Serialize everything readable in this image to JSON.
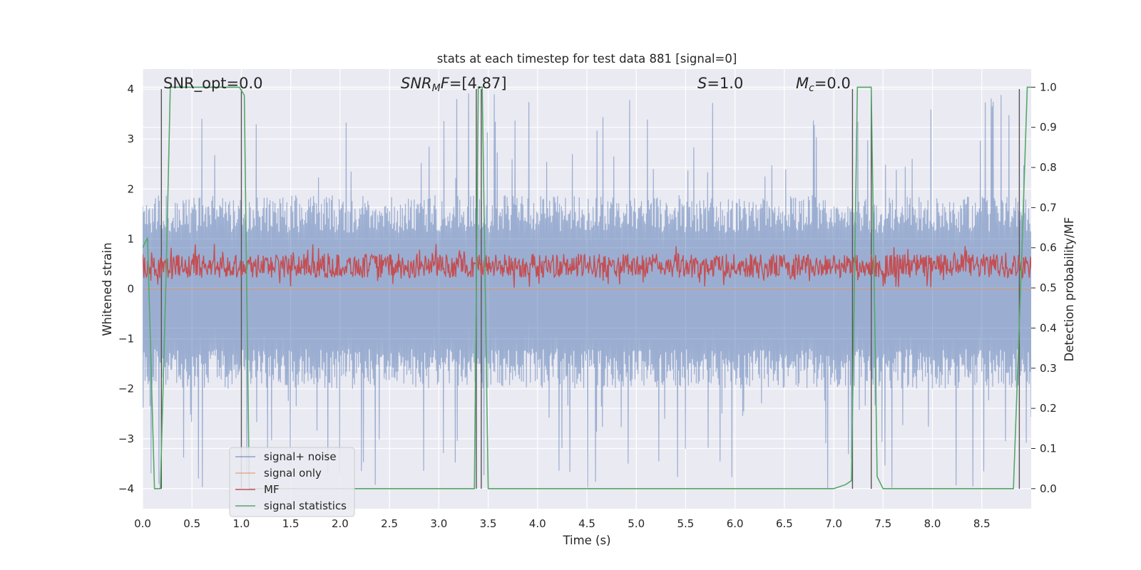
{
  "chart_data": {
    "type": "line",
    "title": "stats at each timestep for test data 881 [signal=0]",
    "xlabel": "Time (s)",
    "ylabel_left": "Whitened strain",
    "ylabel_right": "Detection probability/MF",
    "xlim": [
      0,
      9.0
    ],
    "ylim_left": [
      -4.4,
      4.4
    ],
    "ylim_right": [
      -0.05,
      1.045
    ],
    "xticks": [
      "0.0",
      "0.5",
      "1.0",
      "1.5",
      "2.0",
      "2.5",
      "3.0",
      "3.5",
      "4.0",
      "4.5",
      "5.0",
      "5.5",
      "6.0",
      "6.5",
      "7.0",
      "7.5",
      "8.0",
      "8.5"
    ],
    "yticks_left": [
      "4",
      "3",
      "2",
      "1",
      "0",
      "−1",
      "−2",
      "−3",
      "−4"
    ],
    "yticks_right": [
      "1.0",
      "0.9",
      "0.8",
      "0.7",
      "0.6",
      "0.5",
      "0.4",
      "0.3",
      "0.2",
      "0.1",
      "0.0"
    ],
    "grid": true,
    "background": "#eaeaf2",
    "annotations": [
      {
        "key": "snr_opt",
        "text": "SNR_opt=0.0",
        "x": 0.19
      },
      {
        "key": "snr_mf",
        "text": "=[4.87]",
        "x": 2.6
      },
      {
        "key": "s",
        "text": "=1.0",
        "x": 5.6
      },
      {
        "key": "mc",
        "text": "=0.0",
        "x": 6.6
      }
    ],
    "noise": {
      "name": "signal+ noise",
      "color": "#4c72b0",
      "n_points": 1800,
      "band_lo": -1.6,
      "band_hi": 1.5,
      "peak_max": 4.0,
      "peak_min": -4.0
    },
    "signal_only": {
      "name": "signal only",
      "color": "#dd8452",
      "value": 0.0
    },
    "mf": {
      "name": "MF",
      "color": "#c44e52",
      "n_points": 1400,
      "mean": 0.555,
      "amplitude": 0.03,
      "peak_max": 0.61,
      "peak_min": 0.5
    },
    "signal_statistics": {
      "name": "signal statistics",
      "color": "#55a868",
      "x": [
        0.0,
        0.05,
        0.12,
        0.18,
        0.24,
        0.28,
        0.4,
        0.6,
        0.8,
        0.98,
        1.03,
        1.08,
        1.18,
        1.4,
        2.0,
        2.5,
        3.0,
        3.36,
        3.4,
        3.44,
        3.5,
        3.6,
        4.0,
        5.0,
        6.0,
        7.0,
        7.12,
        7.18,
        7.24,
        7.38,
        7.44,
        7.5,
        7.6,
        8.0,
        8.5,
        8.82,
        8.9,
        8.96,
        9.0
      ],
      "y": [
        0.6,
        0.625,
        0.0,
        0.0,
        0.55,
        1.0,
        1.0,
        1.0,
        1.0,
        1.0,
        0.98,
        0.0,
        0.0,
        0.0,
        0.0,
        0.0,
        0.0,
        0.0,
        1.0,
        1.0,
        0.0,
        0.0,
        0.0,
        0.0,
        0.0,
        0.0,
        0.01,
        0.02,
        1.0,
        1.0,
        0.03,
        0.0,
        0.0,
        0.0,
        0.0,
        0.0,
        0.55,
        1.0,
        1.0
      ]
    },
    "vlines": {
      "color": "#555555",
      "x": [
        0.19,
        1.0,
        3.38,
        3.43,
        7.19,
        7.38,
        8.88
      ],
      "ymin": -4.0,
      "ymax": 4.0
    },
    "legend": {
      "placement": "lower-left",
      "entries": [
        "signal+ noise",
        "signal only",
        "MF",
        "signal statistics"
      ]
    }
  }
}
